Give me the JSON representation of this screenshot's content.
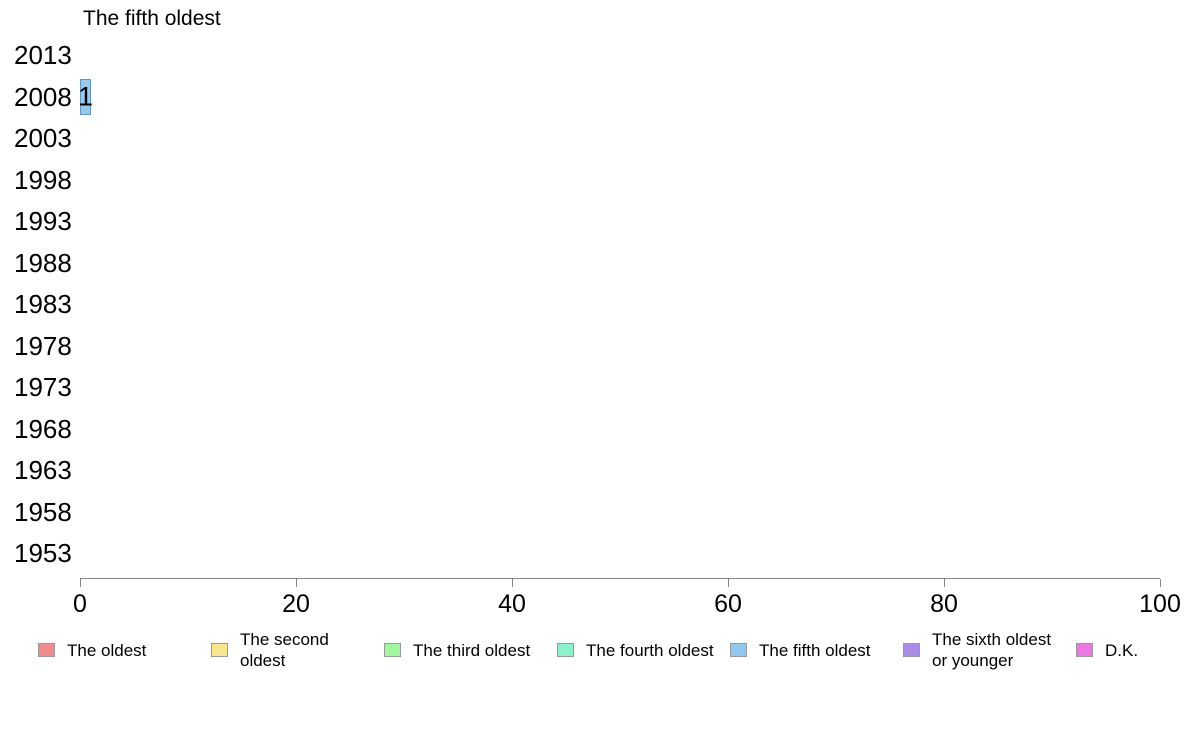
{
  "chart_data": {
    "type": "bar",
    "orientation": "horizontal",
    "title": "The fifth oldest",
    "categories": [
      "2013",
      "2008",
      "2003",
      "1998",
      "1993",
      "1988",
      "1983",
      "1978",
      "1973",
      "1968",
      "1963",
      "1958",
      "1953"
    ],
    "values": [
      0,
      1,
      0,
      0,
      0,
      0,
      0,
      0,
      0,
      0,
      0,
      0,
      0
    ],
    "bar_labels": [
      "",
      "1",
      "",
      "",
      "",
      "",
      "",
      "",
      "",
      "",
      "",
      "",
      ""
    ],
    "xlim": [
      0,
      100
    ],
    "x_ticks": [
      0,
      20,
      40,
      60,
      80,
      100
    ],
    "grid": false,
    "legend_position": "bottom",
    "series_name": "The fifth oldest",
    "bar_fill_color": "#97C9ED",
    "bar_border_color": "#5E97C7",
    "axis_color": "#888888",
    "legend": [
      {
        "label": "The oldest",
        "color": "#F28B8B"
      },
      {
        "label": "The second oldest",
        "color": "#F7E890"
      },
      {
        "label": "The third oldest",
        "color": "#9FF89C"
      },
      {
        "label": "The fourth oldest",
        "color": "#8BF2CA"
      },
      {
        "label": "The fifth oldest",
        "color": "#8FC7F0"
      },
      {
        "label": "The sixth oldest or younger",
        "color": "#A98BE8"
      },
      {
        "label": "D.K.",
        "color": "#F077E1"
      }
    ]
  }
}
